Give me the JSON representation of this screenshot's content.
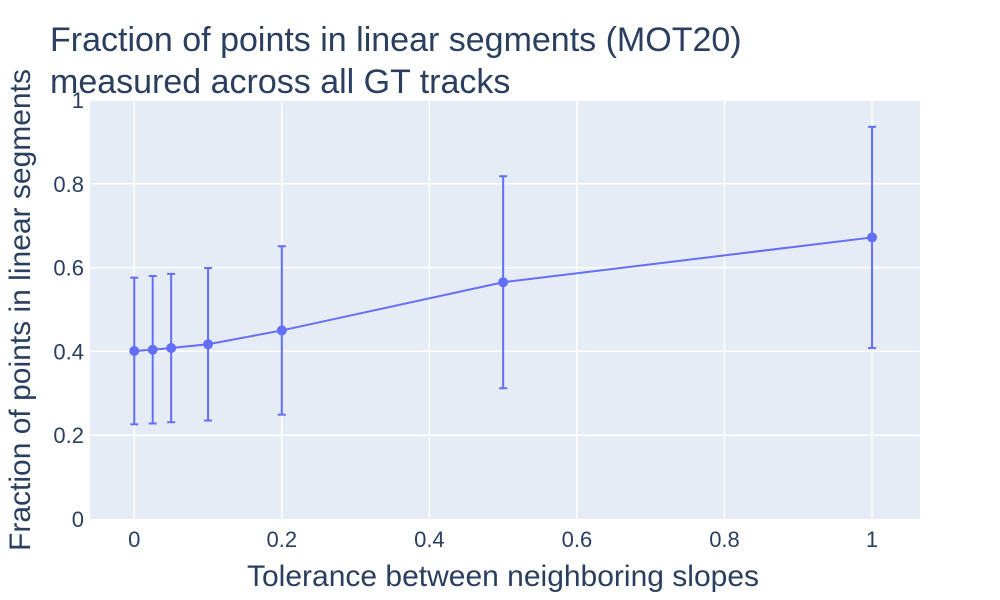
{
  "chart_data": {
    "type": "line",
    "title_lines": [
      "Fraction of points in linear segments (MOT20)",
      "measured across all GT tracks"
    ],
    "xlabel": "Tolerance between neighboring slopes",
    "ylabel": "Fraction of points in linear segments",
    "xlim": [
      -0.06,
      1.065
    ],
    "ylim": [
      0,
      1
    ],
    "x_ticks": [
      0,
      0.2,
      0.4,
      0.6,
      0.8,
      1
    ],
    "x_tick_labels": [
      "0",
      "0.2",
      "0.4",
      "0.6",
      "0.8",
      "1"
    ],
    "y_ticks": [
      0,
      0.2,
      0.4,
      0.6,
      0.8,
      1
    ],
    "y_tick_labels": [
      "0",
      "0.2",
      "0.4",
      "0.6",
      "0.8",
      "1"
    ],
    "grid": true,
    "series": [
      {
        "color": "#636efa",
        "x": [
          0,
          0.025,
          0.05,
          0.1,
          0.2,
          0.5,
          1
        ],
        "y": [
          0.401,
          0.404,
          0.408,
          0.417,
          0.45,
          0.565,
          0.672
        ],
        "error_minus": [
          0.175,
          0.176,
          0.177,
          0.182,
          0.201,
          0.253,
          0.264
        ],
        "error_plus": [
          0.175,
          0.176,
          0.177,
          0.182,
          0.201,
          0.253,
          0.264
        ]
      }
    ],
    "colors": {
      "plot_bg": "#e5ecf6",
      "grid": "#ffffff",
      "text": "#2a3f5f"
    }
  }
}
